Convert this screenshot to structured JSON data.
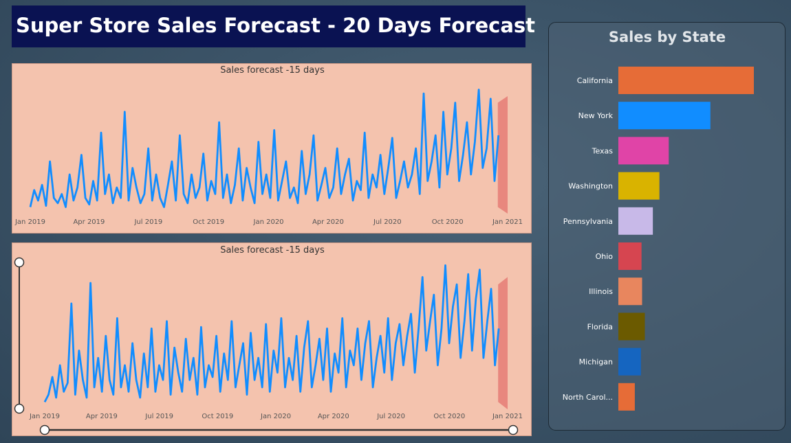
{
  "header": {
    "title": "Super Store Sales Forecast - 20 Days Forecast"
  },
  "forecast_axis_ticks": [
    "Jan 2019",
    "Apr 2019",
    "Jul 2019",
    "Oct 2019",
    "Jan 2020",
    "Apr 2020",
    "Jul 2020",
    "Oct 2020",
    "Jan 2021"
  ],
  "colors": {
    "line": "#118dff",
    "forecast_band": "#e8877e",
    "panel_bg": "#f4c3ae"
  },
  "chart_data": [
    {
      "type": "line",
      "title": "Sales forecast -15 days",
      "x_start": "2019-01-01",
      "x_end": "2021-01-01",
      "xlabel": "",
      "ylabel": "",
      "series": [
        {
          "values": [
            0.05,
            0.18,
            0.1,
            0.22,
            0.06,
            0.4,
            0.12,
            0.08,
            0.15,
            0.05,
            0.3,
            0.1,
            0.2,
            0.45,
            0.12,
            0.07,
            0.25,
            0.1,
            0.62,
            0.15,
            0.3,
            0.08,
            0.2,
            0.12,
            0.78,
            0.1,
            0.35,
            0.2,
            0.08,
            0.15,
            0.5,
            0.1,
            0.3,
            0.12,
            0.05,
            0.22,
            0.4,
            0.1,
            0.6,
            0.15,
            0.08,
            0.3,
            0.12,
            0.2,
            0.46,
            0.1,
            0.25,
            0.15,
            0.7,
            0.12,
            0.3,
            0.08,
            0.22,
            0.5,
            0.1,
            0.35,
            0.2,
            0.08,
            0.55,
            0.15,
            0.3,
            0.12,
            0.64,
            0.1,
            0.25,
            0.4,
            0.12,
            0.2,
            0.08,
            0.48,
            0.15,
            0.3,
            0.6,
            0.1,
            0.22,
            0.35,
            0.12,
            0.2,
            0.5,
            0.15,
            0.3,
            0.42,
            0.1,
            0.25,
            0.18,
            0.62,
            0.12,
            0.3,
            0.2,
            0.45,
            0.15,
            0.35,
            0.58,
            0.12,
            0.25,
            0.4,
            0.2,
            0.3,
            0.5,
            0.15,
            0.92,
            0.25,
            0.4,
            0.6,
            0.2,
            0.78,
            0.3,
            0.5,
            0.85,
            0.25,
            0.45,
            0.7,
            0.3,
            0.55,
            0.95,
            0.35,
            0.5,
            0.88,
            0.25,
            0.6
          ],
          "forecast_band": {
            "start": "2020-12-17",
            "end": "2021-01-01",
            "low": 0.0,
            "high": 0.85
          }
        }
      ]
    },
    {
      "type": "line",
      "title": "Sales forecast -15 days",
      "x_start": "2019-01-01",
      "x_end": "2021-01-01",
      "xlabel": "",
      "ylabel": "",
      "series": [
        {
          "values": [
            0.05,
            0.1,
            0.22,
            0.08,
            0.3,
            0.12,
            0.18,
            0.72,
            0.1,
            0.4,
            0.2,
            0.08,
            0.86,
            0.15,
            0.35,
            0.12,
            0.5,
            0.2,
            0.1,
            0.62,
            0.15,
            0.3,
            0.12,
            0.45,
            0.2,
            0.08,
            0.38,
            0.15,
            0.55,
            0.12,
            0.3,
            0.2,
            0.6,
            0.1,
            0.42,
            0.25,
            0.12,
            0.48,
            0.2,
            0.35,
            0.1,
            0.56,
            0.15,
            0.3,
            0.22,
            0.5,
            0.12,
            0.38,
            0.2,
            0.6,
            0.15,
            0.3,
            0.45,
            0.1,
            0.52,
            0.2,
            0.35,
            0.15,
            0.58,
            0.12,
            0.4,
            0.25,
            0.62,
            0.15,
            0.35,
            0.2,
            0.5,
            0.12,
            0.42,
            0.6,
            0.15,
            0.3,
            0.48,
            0.2,
            0.55,
            0.12,
            0.38,
            0.25,
            0.62,
            0.15,
            0.4,
            0.3,
            0.55,
            0.2,
            0.45,
            0.6,
            0.15,
            0.35,
            0.5,
            0.25,
            0.62,
            0.2,
            0.45,
            0.58,
            0.3,
            0.5,
            0.65,
            0.25,
            0.55,
            0.9,
            0.4,
            0.6,
            0.78,
            0.3,
            0.55,
            0.98,
            0.45,
            0.7,
            0.85,
            0.35,
            0.6,
            0.92,
            0.4,
            0.75,
            0.95,
            0.35,
            0.6,
            0.82,
            0.3,
            0.55
          ],
          "forecast_band": {
            "start": "2020-12-17",
            "end": "2021-01-01",
            "low": 0.0,
            "high": 0.85
          }
        }
      ]
    },
    {
      "type": "bar",
      "orientation": "horizontal",
      "title": "Sales by State",
      "categories": [
        "California",
        "New York",
        "Texas",
        "Washington",
        "Pennsylvania",
        "Ohio",
        "Illinois",
        "Florida",
        "Michigan",
        "North Carol..."
      ],
      "values": [
        457688,
        310876,
        170188,
        138641,
        116512,
        78258,
        80166,
        89474,
        76270,
        55603
      ],
      "colors": [
        "#e66c37",
        "#118dff",
        "#e044a7",
        "#d9b300",
        "#c8b9e8",
        "#d64550",
        "#e8865e",
        "#6b5a00",
        "#1565c0",
        "#e66c37"
      ]
    }
  ]
}
